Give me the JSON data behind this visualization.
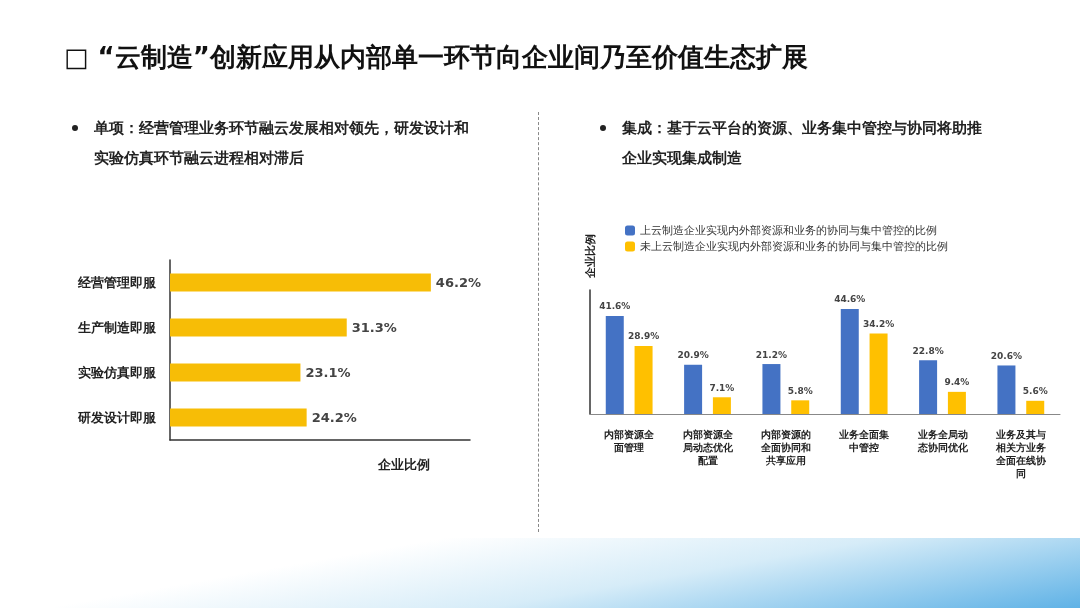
{
  "chart_data": [
    {
      "type": "bar",
      "title": "□ “云制造”创新应用从内部单一环节向企业间乃至价值生态扩展",
      "subtitle": "单项：经营管理业务环节融云发展相对领先，研发设计和实验仿真环节融云进程相对滞后",
      "orientation": "horizontal",
      "categories": [
        "经营管理即服",
        "生产制造即服",
        "实验仿真即服",
        "研发设计即服"
      ],
      "xlabel": "企业比例",
      "series": [
        {
          "color": "#f7bd06",
          "values": [
            46.2,
            31.3,
            23.1,
            24.2
          ],
          "value_labels": [
            "46.2%",
            "31.3%",
            "23.1%",
            "24.2%"
          ]
        }
      ],
      "tick_labels": "y",
      "grid": false,
      "legend": false
    },
    {
      "type": "bar",
      "subtitle": "集成：基于云平台的资源、业务集中管控与协同将助推企业实现集成制造",
      "ylabel": "企业比例",
      "categories": [
        "内部资源全面管理",
        "内部资源全局动态优化配置",
        "内部资源的全面协同和共享应用",
        "业务全面集中管控",
        "业务全局动态协同优化",
        "业务及其与相关方业务全面在线协同"
      ],
      "series": [
        {
          "name": "上云制造企业实现内外部资源和业务的协同与集中管控的比例",
          "color": "#4472c4",
          "values": [
            41.6,
            20.9,
            21.2,
            44.6,
            22.8,
            20.6
          ],
          "value_labels": [
            "41.6%",
            "20.9%",
            "21.2%",
            "44.6%",
            "22.8%",
            "20.6%"
          ]
        },
        {
          "name": "未上云制造企业实现内外部资源和业务的协同与集中管控的比例",
          "color": "#ffc000",
          "values": [
            28.9,
            7.1,
            5.8,
            34.2,
            9.4,
            5.6
          ],
          "value_labels": [
            "28.9%",
            "7.1%",
            "5.8%",
            "34.2%",
            "9.4%",
            "5.6%"
          ]
        }
      ],
      "tick_labels": "x",
      "grid": false,
      "legend": "top"
    }
  ]
}
